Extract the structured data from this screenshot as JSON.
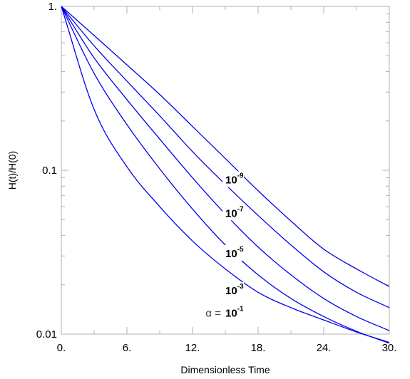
{
  "chart_data": {
    "type": "line",
    "title": "",
    "xlabel": "Dimensionless Time",
    "ylabel": "H(t)/H(0)",
    "xlim": [
      0,
      30
    ],
    "ylim": [
      0.01,
      1
    ],
    "yscale": "log",
    "grid": false,
    "x_ticks": [
      0,
      6,
      12,
      18,
      24,
      30
    ],
    "x_tick_labels": [
      "0.",
      "6.",
      "12.",
      "18.",
      "24.",
      "30."
    ],
    "y_ticks": [
      0.01,
      0.1,
      1
    ],
    "y_tick_labels": [
      "0.01",
      "0.1",
      "1."
    ],
    "line_color": "#0000ee",
    "x": [
      0,
      3,
      6,
      9,
      12,
      15,
      18,
      21,
      24,
      27,
      30
    ],
    "series": [
      {
        "label_base": "10",
        "label_exp": "-9",
        "label_at": [
          15,
          0.083
        ],
        "values": [
          1.0,
          0.665,
          0.44,
          0.29,
          0.185,
          0.118,
          0.075,
          0.049,
          0.033,
          0.025,
          0.0195
        ]
      },
      {
        "label_base": "10",
        "label_exp": "-7",
        "label_at": [
          15,
          0.052
        ],
        "values": [
          1.0,
          0.575,
          0.35,
          0.215,
          0.13,
          0.082,
          0.053,
          0.035,
          0.024,
          0.018,
          0.0145
        ]
      },
      {
        "label_base": "10",
        "label_exp": "-5",
        "label_at": [
          15,
          0.0295
        ],
        "values": [
          1.0,
          0.485,
          0.27,
          0.155,
          0.09,
          0.054,
          0.034,
          0.023,
          0.0165,
          0.0128,
          0.0105
        ]
      },
      {
        "label_base": "10",
        "label_exp": "-3",
        "label_at": [
          15,
          0.0175
        ],
        "values": [
          1.0,
          0.39,
          0.19,
          0.102,
          0.058,
          0.035,
          0.023,
          0.0165,
          0.0128,
          0.0104,
          0.0088
        ]
      },
      {
        "label_base": "10",
        "label_exp": "-1",
        "label_at": [
          15,
          0.0128
        ],
        "label_prefix": "α =",
        "values": [
          1.0,
          0.235,
          0.105,
          0.06,
          0.037,
          0.025,
          0.018,
          0.0145,
          0.0122,
          0.0103,
          0.0089
        ]
      }
    ]
  }
}
